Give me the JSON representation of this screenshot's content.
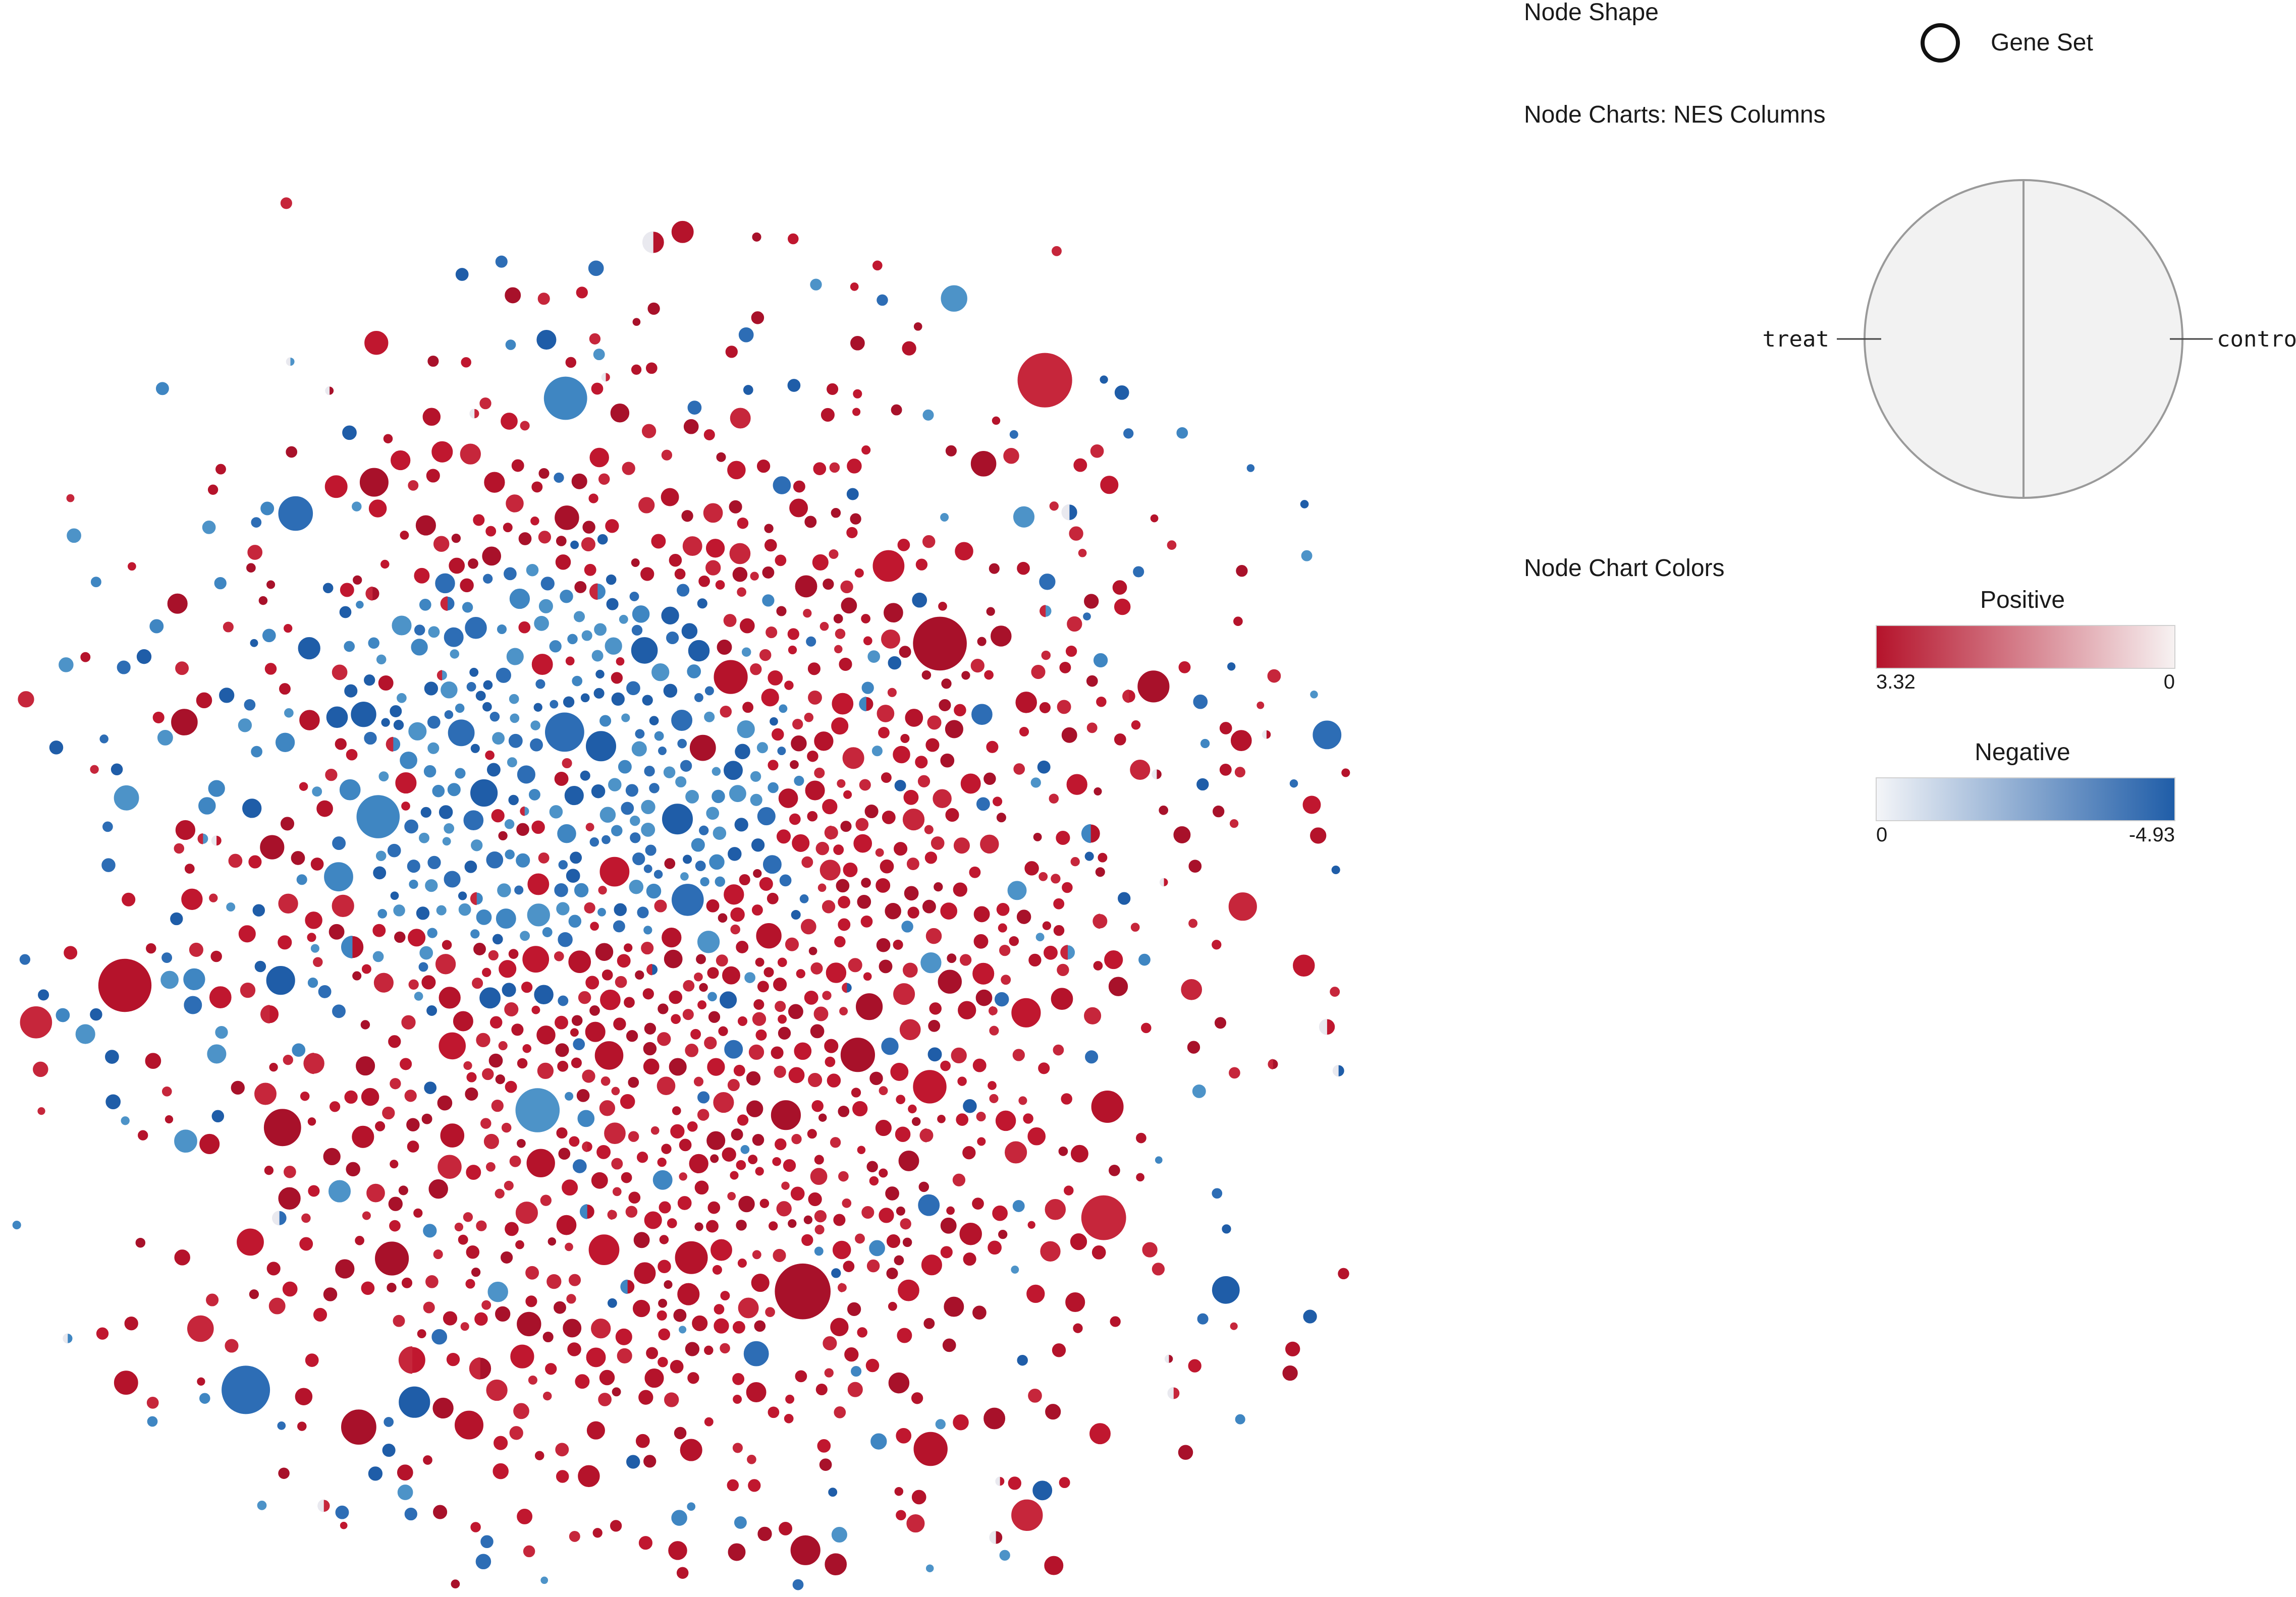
{
  "legend": {
    "node_shape_title": "Node Shape",
    "node_shape_label": "Gene Set",
    "node_charts_title": "Node Charts: NES Columns",
    "pie_left_label": "treat",
    "pie_right_label": "control",
    "node_chart_colors_title": "Node Chart Colors",
    "positive_title": "Positive",
    "positive_min_label": "3.32",
    "positive_max_label": "0",
    "negative_title": "Negative",
    "negative_min_label": "0",
    "negative_max_label": "-4.93"
  },
  "colors": {
    "positive_strong": "#b5132b",
    "positive_zero": "#f7f2f2",
    "negative_zero": "#f4f5f8",
    "negative_strong": "#1f5da8",
    "pie_fill": "#f2f2f2",
    "pie_stroke": "#9a9a9a",
    "node_red": [
      "#b5132b",
      "#c0172f",
      "#a8112a",
      "#c6263b"
    ],
    "node_blue": [
      "#1f5da8",
      "#2d6db5",
      "#3f86c2",
      "#4d93c8"
    ]
  },
  "network": {
    "cluster_seed": 20240611,
    "total_nodes": 1500
  }
}
